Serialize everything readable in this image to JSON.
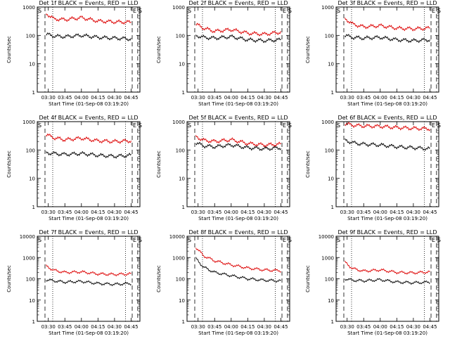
{
  "figure": {
    "x_ticks": [
      "03:30",
      "03:45",
      "04:00",
      "04:15",
      "04:30",
      "04:45"
    ],
    "y_ticks": [
      "1",
      "10",
      "100",
      "1000",
      "10000"
    ],
    "colors": {
      "events": "#000000",
      "lld": "#dd0000"
    }
  },
  "chart_data": [
    {
      "type": "line",
      "title": "Det 1f BLACK = Events, RED = LLD",
      "xlabel": "Start Time (01-Sep-08 03:19:20)",
      "ylabel": "Counts/sec",
      "y_scale": "log",
      "ylim": [
        1,
        1000
      ],
      "xlim": [
        "03:20",
        "04:53"
      ],
      "x_ticks": [
        "03:30",
        "03:45",
        "04:00",
        "04:15",
        "04:30",
        "04:45"
      ],
      "y_ticks": [
        "1",
        "10",
        "100",
        "1000"
      ],
      "markers": [
        {
          "label": "S",
          "x": "03:20",
          "style": "dashed"
        },
        {
          "label": "",
          "x": "03:27",
          "style": "dashed"
        },
        {
          "label": "",
          "x": "03:34",
          "style": "dotted"
        },
        {
          "label": "",
          "x": "04:40",
          "style": "dotted"
        },
        {
          "label": "E",
          "x": "04:46",
          "style": "dashed"
        },
        {
          "label": "S",
          "x": "04:51",
          "style": "dashed"
        }
      ],
      "series": [
        {
          "name": "LLD",
          "color": "#dd0000",
          "x": [
            "03:28",
            "03:35",
            "03:45",
            "04:00",
            "04:15",
            "04:30",
            "04:45"
          ],
          "y": [
            600,
            380,
            360,
            420,
            320,
            300,
            290
          ]
        },
        {
          "name": "Events",
          "color": "#000000",
          "x": [
            "03:28",
            "03:35",
            "03:45",
            "04:00",
            "04:15",
            "04:30",
            "04:45"
          ],
          "y": [
            110,
            95,
            90,
            100,
            85,
            80,
            75
          ]
        }
      ]
    },
    {
      "type": "line",
      "title": "Det 2f BLACK = Events, RED = LLD",
      "xlabel": "Start Time (01-Sep-08 03:19:20)",
      "ylabel": "Counts/sec",
      "y_scale": "log",
      "ylim": [
        1,
        1000
      ],
      "xlim": [
        "03:20",
        "04:53"
      ],
      "x_ticks": [
        "03:30",
        "03:45",
        "04:00",
        "04:15",
        "04:30",
        "04:45"
      ],
      "y_ticks": [
        "1",
        "10",
        "100",
        "1000"
      ],
      "markers": [
        {
          "label": "S",
          "x": "03:20",
          "style": "dashed"
        },
        {
          "label": "",
          "x": "03:27",
          "style": "dashed"
        },
        {
          "label": "",
          "x": "03:34",
          "style": "dotted"
        },
        {
          "label": "",
          "x": "04:40",
          "style": "dotted"
        },
        {
          "label": "E",
          "x": "04:46",
          "style": "dashed"
        },
        {
          "label": "S",
          "x": "04:51",
          "style": "dashed"
        }
      ],
      "series": [
        {
          "name": "LLD",
          "color": "#dd0000",
          "x": [
            "03:28",
            "03:35",
            "03:45",
            "04:00",
            "04:15",
            "04:30",
            "04:45"
          ],
          "y": [
            250,
            180,
            140,
            160,
            120,
            110,
            130
          ]
        },
        {
          "name": "Events",
          "color": "#000000",
          "x": [
            "03:28",
            "03:35",
            "03:45",
            "04:00",
            "04:15",
            "04:30",
            "04:45"
          ],
          "y": [
            100,
            85,
            80,
            90,
            70,
            65,
            70
          ]
        }
      ]
    },
    {
      "type": "line",
      "title": "Det 3f BLACK = Events, RED = LLD",
      "xlabel": "Start Time (01-Sep-08 03:19:20)",
      "ylabel": "Counts/sec",
      "y_scale": "log",
      "ylim": [
        1,
        1000
      ],
      "xlim": [
        "03:20",
        "04:53"
      ],
      "x_ticks": [
        "03:30",
        "03:45",
        "04:00",
        "04:15",
        "04:30",
        "04:45"
      ],
      "y_ticks": [
        "1",
        "10",
        "100",
        "1000"
      ],
      "markers": [
        {
          "label": "S",
          "x": "03:20",
          "style": "dashed"
        },
        {
          "label": "",
          "x": "03:27",
          "style": "dashed"
        },
        {
          "label": "",
          "x": "03:34",
          "style": "dotted"
        },
        {
          "label": "",
          "x": "04:40",
          "style": "dotted"
        },
        {
          "label": "E",
          "x": "04:46",
          "style": "dashed"
        },
        {
          "label": "S",
          "x": "04:51",
          "style": "dashed"
        }
      ],
      "series": [
        {
          "name": "LLD",
          "color": "#dd0000",
          "x": [
            "03:28",
            "03:35",
            "03:45",
            "04:00",
            "04:15",
            "04:30",
            "04:45"
          ],
          "y": [
            400,
            250,
            200,
            220,
            180,
            170,
            180
          ]
        },
        {
          "name": "Events",
          "color": "#000000",
          "x": [
            "03:28",
            "03:35",
            "03:45",
            "04:00",
            "04:15",
            "04:30",
            "04:45"
          ],
          "y": [
            100,
            85,
            80,
            85,
            70,
            65,
            70
          ]
        }
      ]
    },
    {
      "type": "line",
      "title": "Det 4f BLACK = Events, RED = LLD",
      "xlabel": "Start Time (01-Sep-08 03:19:20)",
      "ylabel": "Counts/sec",
      "y_scale": "log",
      "ylim": [
        1,
        1000
      ],
      "xlim": [
        "03:20",
        "04:53"
      ],
      "x_ticks": [
        "03:30",
        "03:45",
        "04:00",
        "04:15",
        "04:30",
        "04:45"
      ],
      "y_ticks": [
        "1",
        "10",
        "100",
        "1000"
      ],
      "markers": [
        {
          "label": "S",
          "x": "03:20",
          "style": "dashed"
        },
        {
          "label": "",
          "x": "03:27",
          "style": "dashed"
        },
        {
          "label": "",
          "x": "03:34",
          "style": "dotted"
        },
        {
          "label": "",
          "x": "04:40",
          "style": "dotted"
        },
        {
          "label": "E",
          "x": "04:46",
          "style": "dashed"
        },
        {
          "label": "S",
          "x": "04:51",
          "style": "dashed"
        }
      ],
      "series": [
        {
          "name": "LLD",
          "color": "#dd0000",
          "x": [
            "03:28",
            "03:35",
            "03:45",
            "04:00",
            "04:15",
            "04:30",
            "04:45"
          ],
          "y": [
            350,
            270,
            230,
            260,
            210,
            200,
            210
          ]
        },
        {
          "name": "Events",
          "color": "#000000",
          "x": [
            "03:28",
            "03:35",
            "03:45",
            "04:00",
            "04:15",
            "04:30",
            "04:45"
          ],
          "y": [
            80,
            75,
            70,
            75,
            65,
            60,
            65
          ]
        }
      ]
    },
    {
      "type": "line",
      "title": "Det 5f BLACK = Events, RED = LLD",
      "xlabel": "Start Time (01-Sep-08 03:19:20)",
      "ylabel": "Counts/sec",
      "y_scale": "log",
      "ylim": [
        1,
        1000
      ],
      "xlim": [
        "03:20",
        "04:53"
      ],
      "x_ticks": [
        "03:30",
        "03:45",
        "04:00",
        "04:15",
        "04:30",
        "04:45"
      ],
      "y_ticks": [
        "1",
        "10",
        "100",
        "1000"
      ],
      "markers": [
        {
          "label": "S",
          "x": "03:20",
          "style": "dashed"
        },
        {
          "label": "",
          "x": "03:27",
          "style": "dashed"
        },
        {
          "label": "",
          "x": "03:34",
          "style": "dotted"
        },
        {
          "label": "",
          "x": "04:40",
          "style": "dotted"
        },
        {
          "label": "E",
          "x": "04:46",
          "style": "dashed"
        },
        {
          "label": "S",
          "x": "04:51",
          "style": "dashed"
        }
      ],
      "series": [
        {
          "name": "LLD",
          "color": "#dd0000",
          "x": [
            "03:28",
            "03:35",
            "03:45",
            "04:00",
            "04:15",
            "04:30",
            "04:45"
          ],
          "y": [
            300,
            220,
            200,
            230,
            170,
            150,
            160
          ]
        },
        {
          "name": "Events",
          "color": "#000000",
          "x": [
            "03:28",
            "03:35",
            "03:45",
            "04:00",
            "04:15",
            "04:30",
            "04:45"
          ],
          "y": [
            180,
            140,
            130,
            150,
            120,
            110,
            120
          ]
        }
      ]
    },
    {
      "type": "line",
      "title": "Det 6f BLACK = Events, RED = LLD",
      "xlabel": "Start Time (01-Sep-08 03:19:20)",
      "ylabel": "Counts/sec",
      "y_scale": "log",
      "ylim": [
        1,
        1000
      ],
      "xlim": [
        "03:20",
        "04:53"
      ],
      "x_ticks": [
        "03:30",
        "03:45",
        "04:00",
        "04:15",
        "04:30",
        "04:45"
      ],
      "y_ticks": [
        "1",
        "10",
        "100",
        "1000"
      ],
      "markers": [
        {
          "label": "S",
          "x": "03:20",
          "style": "dashed"
        },
        {
          "label": "",
          "x": "03:27",
          "style": "dashed"
        },
        {
          "label": "",
          "x": "03:34",
          "style": "dotted"
        },
        {
          "label": "",
          "x": "04:40",
          "style": "dotted"
        },
        {
          "label": "E",
          "x": "04:46",
          "style": "dashed"
        },
        {
          "label": "S",
          "x": "04:51",
          "style": "dashed"
        }
      ],
      "series": [
        {
          "name": "LLD",
          "color": "#dd0000",
          "x": [
            "03:28",
            "03:35",
            "03:45",
            "04:00",
            "04:15",
            "04:30",
            "04:45"
          ],
          "y": [
            850,
            750,
            700,
            680,
            620,
            580,
            560
          ]
        },
        {
          "name": "Events",
          "color": "#000000",
          "x": [
            "03:28",
            "03:35",
            "03:45",
            "04:00",
            "04:15",
            "04:30",
            "04:45"
          ],
          "y": [
            220,
            180,
            160,
            150,
            130,
            120,
            110
          ]
        }
      ]
    },
    {
      "type": "line",
      "title": "Det 7f BLACK = Events, RED = LLD",
      "xlabel": "Start Time (01-Sep-08 03:19:20)",
      "ylabel": "Counts/sec",
      "y_scale": "log",
      "ylim": [
        1,
        10000
      ],
      "xlim": [
        "03:20",
        "04:53"
      ],
      "x_ticks": [
        "03:30",
        "03:45",
        "04:00",
        "04:15",
        "04:30",
        "04:45"
      ],
      "y_ticks": [
        "1",
        "10",
        "100",
        "1000",
        "10000"
      ],
      "markers": [
        {
          "label": "S",
          "x": "03:20",
          "style": "dashed"
        },
        {
          "label": "",
          "x": "03:27",
          "style": "dashed"
        },
        {
          "label": "",
          "x": "03:34",
          "style": "dotted"
        },
        {
          "label": "",
          "x": "04:40",
          "style": "dotted"
        },
        {
          "label": "E",
          "x": "04:46",
          "style": "dashed"
        },
        {
          "label": "S",
          "x": "04:51",
          "style": "dashed"
        }
      ],
      "series": [
        {
          "name": "LLD",
          "color": "#dd0000",
          "x": [
            "03:28",
            "03:35",
            "03:45",
            "04:00",
            "04:15",
            "04:30",
            "04:45"
          ],
          "y": [
            400,
            250,
            200,
            210,
            170,
            160,
            170
          ]
        },
        {
          "name": "Events",
          "color": "#000000",
          "x": [
            "03:28",
            "03:35",
            "03:45",
            "04:00",
            "04:15",
            "04:30",
            "04:45"
          ],
          "y": [
            90,
            80,
            70,
            75,
            60,
            55,
            60
          ]
        }
      ]
    },
    {
      "type": "line",
      "title": "Det 8f BLACK = Events, RED = LLD",
      "xlabel": "Start Time (01-Sep-08 03:19:20)",
      "ylabel": "Counts/sec",
      "y_scale": "log",
      "ylim": [
        1,
        10000
      ],
      "xlim": [
        "03:20",
        "04:53"
      ],
      "x_ticks": [
        "03:30",
        "03:45",
        "04:00",
        "04:15",
        "04:30",
        "04:45"
      ],
      "y_ticks": [
        "1",
        "10",
        "100",
        "1000",
        "10000"
      ],
      "markers": [
        {
          "label": "S",
          "x": "03:20",
          "style": "dashed"
        },
        {
          "label": "",
          "x": "03:27",
          "style": "dashed"
        },
        {
          "label": "",
          "x": "03:34",
          "style": "dotted"
        },
        {
          "label": "",
          "x": "04:40",
          "style": "dotted"
        },
        {
          "label": "E",
          "x": "04:46",
          "style": "dashed"
        },
        {
          "label": "S",
          "x": "04:51",
          "style": "dashed"
        }
      ],
      "series": [
        {
          "name": "LLD",
          "color": "#dd0000",
          "x": [
            "03:28",
            "03:35",
            "03:45",
            "04:00",
            "04:15",
            "04:30",
            "04:45"
          ],
          "y": [
            3000,
            1200,
            700,
            450,
            320,
            260,
            240
          ]
        },
        {
          "name": "Events",
          "color": "#000000",
          "x": [
            "03:28",
            "03:35",
            "03:45",
            "04:00",
            "04:15",
            "04:30",
            "04:45"
          ],
          "y": [
            900,
            350,
            200,
            140,
            100,
            85,
            80
          ]
        }
      ]
    },
    {
      "type": "line",
      "title": "Det 9f BLACK = Events, RED = LLD",
      "xlabel": "Start Time (01-Sep-08 03:19:20)",
      "ylabel": "Counts/sec",
      "y_scale": "log",
      "ylim": [
        1,
        10000
      ],
      "xlim": [
        "03:20",
        "04:53"
      ],
      "x_ticks": [
        "03:30",
        "03:45",
        "04:00",
        "04:15",
        "04:30",
        "04:45"
      ],
      "y_ticks": [
        "1",
        "10",
        "100",
        "1000",
        "10000"
      ],
      "markers": [
        {
          "label": "S",
          "x": "03:20",
          "style": "dashed"
        },
        {
          "label": "",
          "x": "03:27",
          "style": "dashed"
        },
        {
          "label": "",
          "x": "03:34",
          "style": "dotted"
        },
        {
          "label": "",
          "x": "04:40",
          "style": "dotted"
        },
        {
          "label": "E",
          "x": "04:46",
          "style": "dashed"
        },
        {
          "label": "S",
          "x": "04:51",
          "style": "dashed"
        }
      ],
      "series": [
        {
          "name": "LLD",
          "color": "#dd0000",
          "x": [
            "03:28",
            "03:35",
            "03:45",
            "04:00",
            "04:15",
            "04:30",
            "04:45"
          ],
          "y": [
            600,
            300,
            230,
            260,
            200,
            190,
            210
          ]
        },
        {
          "name": "Events",
          "color": "#000000",
          "x": [
            "03:28",
            "03:35",
            "03:45",
            "04:00",
            "04:15",
            "04:30",
            "04:45"
          ],
          "y": [
            100,
            85,
            80,
            90,
            70,
            65,
            70
          ]
        }
      ]
    }
  ]
}
